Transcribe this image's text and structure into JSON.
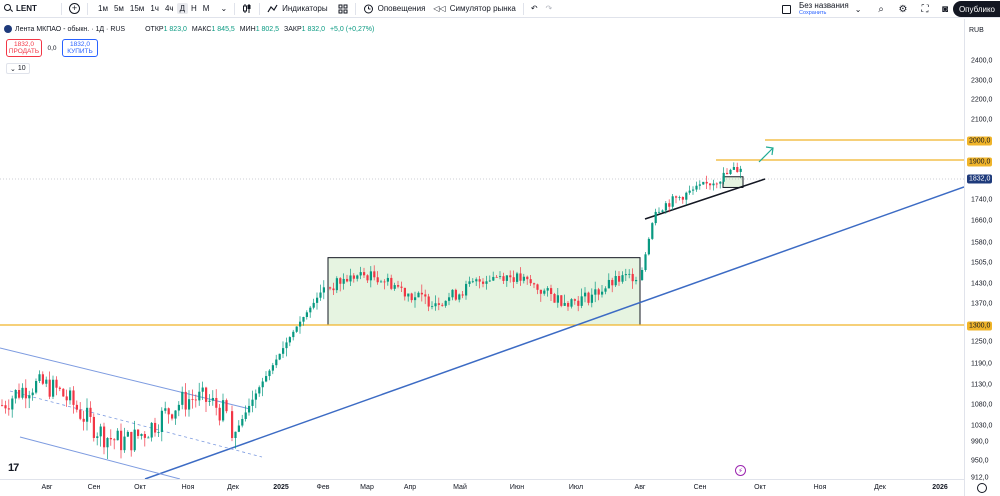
{
  "toolbar": {
    "symbol": "LENT",
    "intervals": [
      "1м",
      "5м",
      "15м",
      "1ч",
      "4ч",
      "Д",
      "Н",
      "М"
    ],
    "active_interval": "Д",
    "indicators_label": "Индикаторы",
    "alerts_label": "Оповещения",
    "replay_label": "Симулятор рынка",
    "layout_name": "Без названия",
    "layout_status": "Сохранить",
    "publish_label": "Опублико"
  },
  "legend": {
    "title": "Лента МКПАО - обыкн. · 1Д · RUS",
    "open_label": "ОТКР",
    "open": "1 823,0",
    "high_label": "МАКС",
    "high": "1 845,5",
    "low_label": "МИН",
    "low": "1 802,5",
    "close_label": "ЗАКР",
    "close": "1 832,0",
    "change": "+5,0 (+0,27%)"
  },
  "trade": {
    "sell_price": "1832,0",
    "sell_label": "ПРОДАТЬ",
    "spread": "0,0",
    "buy_price": "1832,0",
    "buy_label": "КУПИТЬ"
  },
  "volume_toggle": "10",
  "currency": "RUB",
  "colors": {
    "up": "#089981",
    "down": "#f23645",
    "level": "#f0b429",
    "trend": "#3c6bc4",
    "channel": "#7d9be0",
    "range_fill": "#e6f4e1"
  },
  "price_axis": {
    "ticks": [
      "2400,0",
      "2300,0",
      "2200,0",
      "2100,0",
      "2000,0",
      "1900,0",
      "1832,0",
      "1740,0",
      "1660,0",
      "1580,0",
      "1505,0",
      "1430,0",
      "1370,0",
      "1300,0",
      "1250,0",
      "1190,0",
      "1130,0",
      "1080,0",
      "1030,0",
      "990,0",
      "950,0",
      "912,0"
    ],
    "level_badges": [
      "2000,0",
      "1900,0",
      "1300,0"
    ],
    "current_badge": "1832,0"
  },
  "time_axis": {
    "labels": [
      "Авг",
      "Сен",
      "Окт",
      "Ноя",
      "Дек",
      "2025",
      "Фев",
      "Мар",
      "Апр",
      "Май",
      "Июн",
      "Июл",
      "Авг",
      "Сен",
      "Окт",
      "Ноя",
      "Дек",
      "2026"
    ]
  },
  "chart_data": {
    "type": "candlestick",
    "symbol": "LENT",
    "interval": "1Д",
    "currency": "RUB",
    "horizontal_levels": [
      2000,
      1900,
      1300
    ],
    "last_close": 1832,
    "y_range": [
      900,
      2450
    ],
    "segments": [
      {
        "period": "Авг–Дек 2024",
        "start": 1080,
        "end": 1120,
        "low": 950,
        "high": 1220
      },
      {
        "period": "Дек 2024–Фев 2025",
        "start": 1000,
        "end": 1420,
        "low": 970,
        "high": 1430
      },
      {
        "period": "Фев–Авг 2025",
        "start": 1420,
        "end": 1480,
        "low": 1300,
        "high": 1525
      },
      {
        "period": "Авг–Сен 2025",
        "start": 1480,
        "end": 1832,
        "low": 1470,
        "high": 1900
      }
    ]
  }
}
